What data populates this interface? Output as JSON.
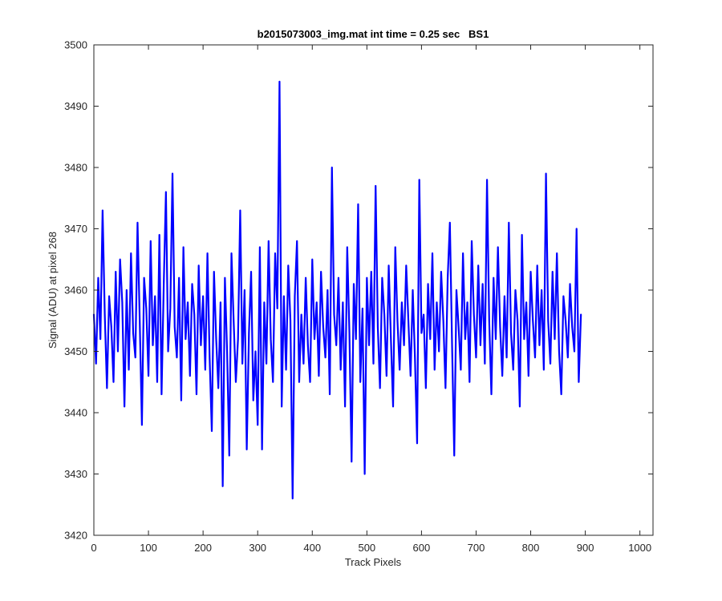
{
  "chart_data": {
    "type": "line",
    "title": "b2015073003_img.mat int time = 0.25 sec   BS1",
    "xlabel": "Track Pixels",
    "ylabel": "Signal (ADU) at pixel 268",
    "xlim": [
      0,
      1024
    ],
    "ylim": [
      3420,
      3500
    ],
    "xticks": [
      "0",
      "100",
      "200",
      "300",
      "400",
      "500",
      "600",
      "700",
      "800",
      "900",
      "1000"
    ],
    "yticks": [
      "3420",
      "3430",
      "3440",
      "3450",
      "3460",
      "3470",
      "3480",
      "3490",
      "3500"
    ],
    "grid": false,
    "series_color": "#0000ff",
    "series": [
      {
        "x_start": 0,
        "x_step": 4,
        "values": [
          3456,
          3448,
          3462,
          3452,
          3473,
          3456,
          3444,
          3459,
          3454,
          3445,
          3463,
          3450,
          3465,
          3458,
          3441,
          3460,
          3447,
          3466,
          3453,
          3449,
          3471,
          3455,
          3438,
          3462,
          3457,
          3446,
          3468,
          3451,
          3459,
          3445,
          3469,
          3443,
          3461,
          3476,
          3450,
          3457,
          3479,
          3454,
          3449,
          3462,
          3442,
          3467,
          3452,
          3458,
          3446,
          3461,
          3456,
          3443,
          3464,
          3451,
          3459,
          3447,
          3466,
          3449,
          3437,
          3463,
          3452,
          3444,
          3458,
          3428,
          3462,
          3450,
          3433,
          3466,
          3455,
          3445,
          3452,
          3473,
          3448,
          3460,
          3434,
          3453,
          3463,
          3442,
          3450,
          3438,
          3467,
          3434,
          3458,
          3448,
          3468,
          3452,
          3445,
          3466,
          3457,
          3494,
          3441,
          3459,
          3447,
          3464,
          3455,
          3426,
          3459,
          3468,
          3445,
          3456,
          3448,
          3462,
          3451,
          3445,
          3465,
          3452,
          3458,
          3446,
          3463,
          3454,
          3449,
          3460,
          3443,
          3480,
          3456,
          3451,
          3462,
          3447,
          3458,
          3441,
          3467,
          3453,
          3432,
          3461,
          3452,
          3474,
          3445,
          3457,
          3430,
          3462,
          3451,
          3463,
          3448,
          3477,
          3454,
          3444,
          3462,
          3456,
          3446,
          3464,
          3452,
          3441,
          3467,
          3455,
          3447,
          3458,
          3451,
          3464,
          3455,
          3446,
          3460,
          3449,
          3435,
          3478,
          3453,
          3456,
          3444,
          3461,
          3452,
          3466,
          3447,
          3458,
          3450,
          3463,
          3455,
          3444,
          3462,
          3471,
          3451,
          3433,
          3460,
          3454,
          3447,
          3466,
          3452,
          3458,
          3445,
          3468,
          3456,
          3449,
          3464,
          3451,
          3461,
          3448,
          3478,
          3455,
          3443,
          3462,
          3452,
          3467,
          3454,
          3446,
          3459,
          3449,
          3471,
          3453,
          3447,
          3460,
          3455,
          3441,
          3469,
          3452,
          3458,
          3446,
          3463,
          3455,
          3449,
          3464,
          3451,
          3460,
          3447,
          3479,
          3455,
          3448,
          3463,
          3452,
          3466,
          3450,
          3443,
          3459,
          3455,
          3449,
          3461,
          3454,
          3450,
          3470,
          3445,
          3456
        ]
      }
    ]
  }
}
